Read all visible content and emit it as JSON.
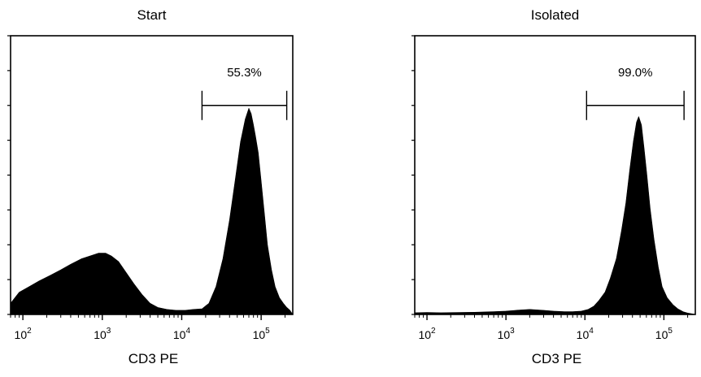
{
  "chart_data": [
    {
      "type": "area",
      "subtype": "histogram",
      "title": "Start",
      "xlabel": "CD3 PE",
      "ylabel": "",
      "x_scale": "log",
      "xlim": [
        70,
        250000
      ],
      "ylim": [
        0,
        1
      ],
      "x_ticks": [
        {
          "base": "10",
          "exp": "2",
          "value": 100
        },
        {
          "base": "10",
          "exp": "3",
          "value": 1000
        },
        {
          "base": "10",
          "exp": "4",
          "value": 10000
        },
        {
          "base": "10",
          "exp": "5",
          "value": 100000
        }
      ],
      "y_tick_count": 8,
      "gate": {
        "x_start": 18000,
        "x_end": 210000,
        "y": 0.75,
        "label": "55.3%"
      },
      "series": [
        {
          "color": "#000000",
          "x": [
            70,
            90,
            120,
            160,
            220,
            300,
            400,
            550,
            700,
            900,
            1100,
            1300,
            1600,
            2000,
            2500,
            3200,
            4000,
            5000,
            6500,
            8500,
            11000,
            14000,
            18000,
            22000,
            27000,
            33000,
            40000,
            47000,
            55000,
            63000,
            70000,
            75000,
            80000,
            85000,
            92000,
            100000,
            110000,
            120000,
            135000,
            150000,
            170000,
            190000,
            210000,
            230000,
            250000
          ],
          "y": [
            0.04,
            0.08,
            0.1,
            0.12,
            0.14,
            0.16,
            0.18,
            0.2,
            0.21,
            0.22,
            0.22,
            0.21,
            0.19,
            0.15,
            0.11,
            0.07,
            0.04,
            0.025,
            0.018,
            0.015,
            0.015,
            0.018,
            0.02,
            0.04,
            0.1,
            0.2,
            0.34,
            0.48,
            0.62,
            0.7,
            0.74,
            0.72,
            0.68,
            0.64,
            0.58,
            0.48,
            0.36,
            0.25,
            0.16,
            0.1,
            0.06,
            0.04,
            0.025,
            0.015,
            0.0
          ]
        }
      ]
    },
    {
      "type": "area",
      "subtype": "histogram",
      "title": "Isolated",
      "xlabel": "CD3 PE",
      "ylabel": "",
      "x_scale": "log",
      "xlim": [
        70,
        250000
      ],
      "ylim": [
        0,
        1
      ],
      "x_ticks": [
        {
          "base": "10",
          "exp": "2",
          "value": 100
        },
        {
          "base": "10",
          "exp": "3",
          "value": 1000
        },
        {
          "base": "10",
          "exp": "4",
          "value": 10000
        },
        {
          "base": "10",
          "exp": "5",
          "value": 100000
        }
      ],
      "y_tick_count": 8,
      "gate": {
        "x_start": 10500,
        "x_end": 180000,
        "y": 0.75,
        "label": "99.0%"
      },
      "series": [
        {
          "color": "#000000",
          "x": [
            70,
            100,
            150,
            250,
            400,
            700,
            1000,
            1500,
            2000,
            3000,
            4000,
            5500,
            7000,
            9000,
            11000,
            13000,
            15000,
            18000,
            21000,
            25000,
            29000,
            33000,
            37000,
            41000,
            45000,
            48000,
            52000,
            56000,
            61000,
            67000,
            75000,
            85000,
            95000,
            110000,
            130000,
            150000,
            175000,
            200000,
            230000,
            250000
          ],
          "y": [
            0.006,
            0.007,
            0.006,
            0.007,
            0.008,
            0.01,
            0.012,
            0.016,
            0.018,
            0.015,
            0.012,
            0.01,
            0.01,
            0.012,
            0.018,
            0.03,
            0.05,
            0.08,
            0.13,
            0.2,
            0.3,
            0.4,
            0.52,
            0.62,
            0.69,
            0.71,
            0.68,
            0.6,
            0.5,
            0.38,
            0.27,
            0.17,
            0.1,
            0.06,
            0.035,
            0.02,
            0.01,
            0.005,
            0.002,
            0.0
          ]
        }
      ]
    }
  ]
}
